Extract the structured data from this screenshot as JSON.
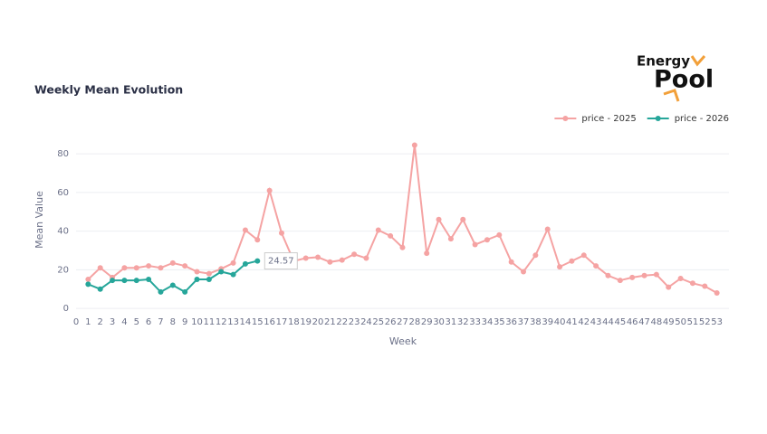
{
  "chart_data": {
    "type": "line",
    "title": "Weekly Mean Evolution",
    "x_label": "Week",
    "y_label": "Mean Value",
    "x": [
      1,
      2,
      3,
      4,
      5,
      6,
      7,
      8,
      9,
      10,
      11,
      12,
      13,
      14,
      15,
      16,
      17,
      18,
      19,
      20,
      21,
      22,
      23,
      24,
      25,
      26,
      27,
      28,
      29,
      30,
      31,
      32,
      33,
      34,
      35,
      36,
      37,
      38,
      39,
      40,
      41,
      42,
      43,
      44,
      45,
      46,
      47,
      48,
      49,
      50,
      51,
      52,
      53
    ],
    "series": [
      {
        "name": "price - 2025",
        "color": "#f5a3a3",
        "values": [
          15,
          21,
          16,
          21,
          21,
          22,
          21,
          23.5,
          22,
          19,
          18,
          20.5,
          23.5,
          40.5,
          35.5,
          61,
          39,
          24.5,
          26,
          26.5,
          24,
          25,
          28,
          26,
          40.5,
          37.5,
          31.5,
          84.5,
          28.5,
          46,
          36,
          46,
          33,
          35.5,
          38,
          24,
          19,
          27.5,
          41,
          21.5,
          24.5,
          27.5,
          22,
          17,
          14.5,
          16,
          17,
          17.5,
          11,
          15.5,
          13,
          11.5,
          8
        ]
      },
      {
        "name": "price - 2026",
        "color": "#26a69a",
        "values": [
          12.5,
          10,
          14.5,
          14.5,
          14.5,
          15,
          8.5,
          12,
          8.5,
          15,
          15,
          19,
          17.5,
          23,
          24.57,
          null,
          null,
          null,
          null,
          null,
          null,
          null,
          null,
          null,
          null,
          null,
          null,
          null,
          null,
          null,
          null,
          null,
          null,
          null,
          null,
          null,
          null,
          null,
          null,
          null,
          null,
          null,
          null,
          null,
          null,
          null,
          null,
          null,
          null,
          null,
          null,
          null,
          null
        ]
      }
    ],
    "xlim": [
      0,
      54
    ],
    "ylim": [
      -3,
      88
    ],
    "xticks": [
      0,
      1,
      2,
      3,
      4,
      5,
      6,
      7,
      8,
      9,
      10,
      11,
      12,
      13,
      14,
      15,
      16,
      17,
      18,
      19,
      20,
      21,
      22,
      23,
      24,
      25,
      26,
      27,
      28,
      29,
      30,
      31,
      32,
      33,
      34,
      35,
      36,
      37,
      38,
      39,
      40,
      41,
      42,
      43,
      44,
      45,
      46,
      47,
      48,
      49,
      50,
      51,
      52,
      53
    ],
    "yticks": [
      0,
      20,
      40,
      60,
      80
    ],
    "grid": true,
    "legend_position": "top-right",
    "hover_point": {
      "series": 1,
      "index": 14
    }
  },
  "logo": {
    "line1": "Energy",
    "line2": "Pool"
  }
}
